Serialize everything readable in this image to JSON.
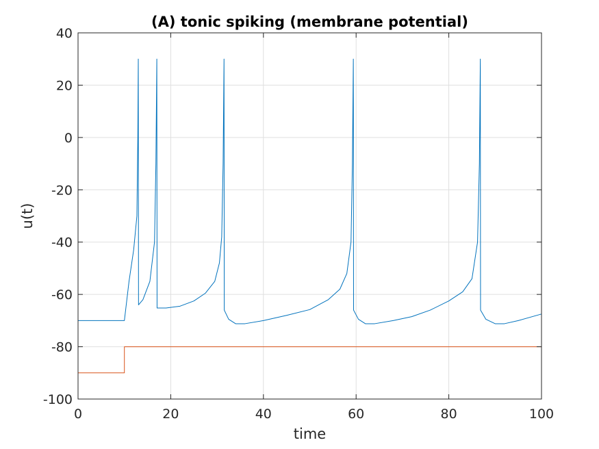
{
  "chart_data": {
    "type": "line",
    "title": "(A) tonic spiking (membrane potential)",
    "xlabel": "time",
    "ylabel": "u(t)",
    "xlim": [
      0,
      100
    ],
    "ylim": [
      -100,
      40
    ],
    "xticks": [
      0,
      20,
      40,
      60,
      80,
      100
    ],
    "yticks": [
      -100,
      -80,
      -60,
      -40,
      -20,
      0,
      20,
      40
    ],
    "xtick_labels": [
      "0",
      "20",
      "40",
      "60",
      "80",
      "100"
    ],
    "ytick_labels": [
      "-100",
      "-80",
      "-60",
      "-40",
      "-20",
      "0",
      "20",
      "40"
    ],
    "grid": true,
    "series": [
      {
        "color": "#0072BD",
        "points": [
          [
            0,
            -70
          ],
          [
            10,
            -70
          ],
          [
            11,
            -55
          ],
          [
            12,
            -43
          ],
          [
            12.7,
            -30
          ],
          [
            12.9,
            0
          ],
          [
            13.0,
            30
          ],
          [
            13.05,
            -64
          ],
          [
            14,
            -62
          ],
          [
            15.5,
            -55
          ],
          [
            16.5,
            -40
          ],
          [
            16.8,
            -10
          ],
          [
            17.0,
            30
          ],
          [
            17.05,
            -65.2
          ],
          [
            19,
            -65.2
          ],
          [
            22,
            -64.5
          ],
          [
            25,
            -62.5
          ],
          [
            27.5,
            -59.5
          ],
          [
            29.5,
            -55
          ],
          [
            30.5,
            -48
          ],
          [
            31,
            -38
          ],
          [
            31.3,
            -10
          ],
          [
            31.5,
            30
          ],
          [
            31.55,
            -66
          ],
          [
            32.5,
            -69.5
          ],
          [
            34,
            -71.2
          ],
          [
            36,
            -71.2
          ],
          [
            40,
            -70
          ],
          [
            45,
            -68
          ],
          [
            50,
            -65.8
          ],
          [
            54,
            -62
          ],
          [
            56.5,
            -58
          ],
          [
            58,
            -52
          ],
          [
            58.9,
            -40
          ],
          [
            59.2,
            -10
          ],
          [
            59.4,
            30
          ],
          [
            59.45,
            -66
          ],
          [
            60.5,
            -69.5
          ],
          [
            62,
            -71.2
          ],
          [
            64,
            -71.2
          ],
          [
            68,
            -70
          ],
          [
            72,
            -68.5
          ],
          [
            76,
            -66
          ],
          [
            80,
            -62.5
          ],
          [
            83,
            -59
          ],
          [
            85,
            -54
          ],
          [
            86.2,
            -40
          ],
          [
            86.6,
            -10
          ],
          [
            86.8,
            30
          ],
          [
            86.85,
            -66
          ],
          [
            88,
            -69.5
          ],
          [
            90,
            -71.2
          ],
          [
            92,
            -71.2
          ],
          [
            95,
            -70
          ],
          [
            100,
            -67.5
          ]
        ]
      },
      {
        "color": "#D95319",
        "points": [
          [
            0,
            -90
          ],
          [
            10,
            -90
          ],
          [
            10,
            -80
          ],
          [
            100,
            -80
          ]
        ]
      }
    ]
  }
}
